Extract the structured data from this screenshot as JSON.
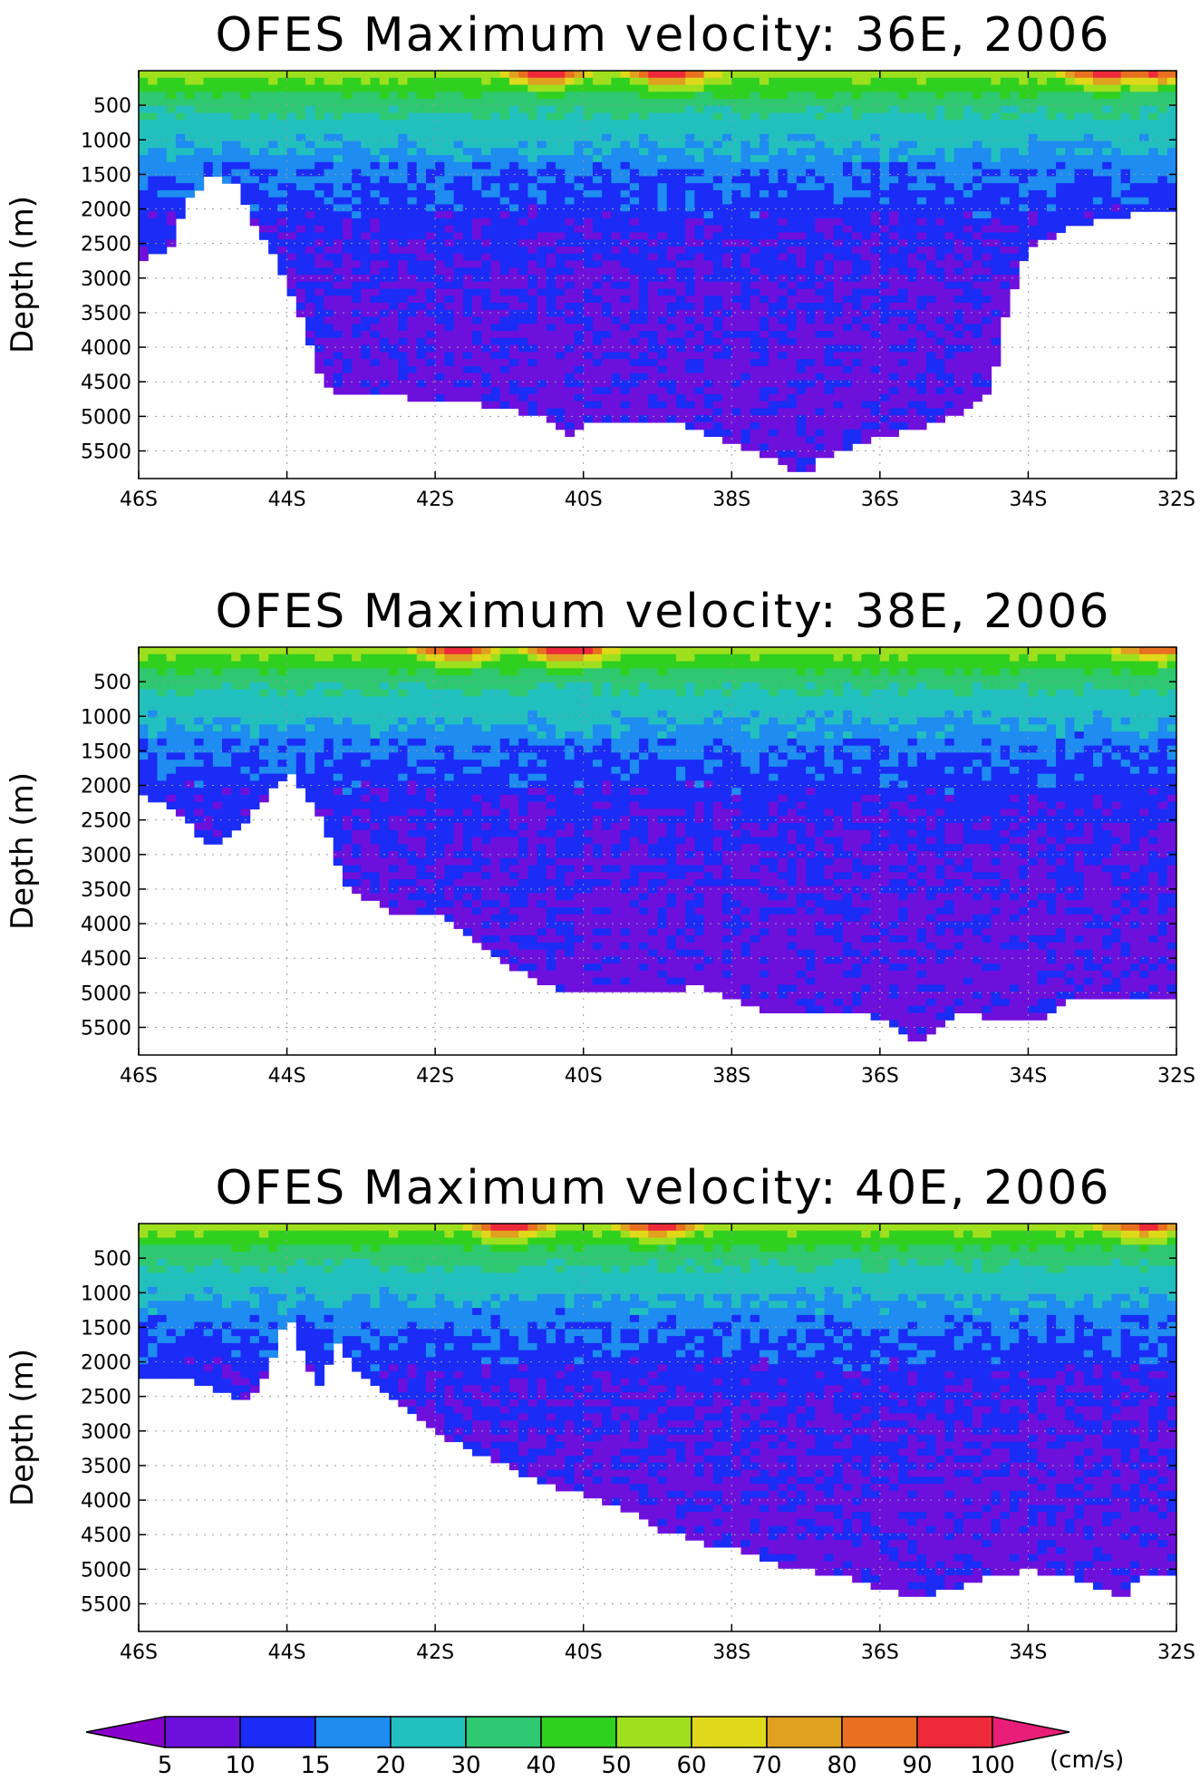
{
  "chart_data": [
    {
      "type": "heatmap",
      "title": "OFES Maximum velocity: 36E, 2006",
      "ylabel": "Depth (m)",
      "xlabel": "",
      "x_ticks": [
        "46S",
        "44S",
        "42S",
        "40S",
        "38S",
        "36S",
        "34S",
        "32S"
      ],
      "y_ticks": [
        "500",
        "1000",
        "1500",
        "2000",
        "2500",
        "3000",
        "3500",
        "4000",
        "4500",
        "5000",
        "5500"
      ],
      "xlim": [
        -46,
        -32
      ],
      "ylim_depth_m": [
        0,
        5900
      ],
      "grid": true,
      "units": "cm/s",
      "bathymetry_bottom_depth_m": {
        "lat": [
          -46,
          -45.6,
          -45.3,
          -45,
          -44.7,
          -44.4,
          -44.1,
          -43.8,
          -43.5,
          -43,
          -42.5,
          -42,
          -41.5,
          -41,
          -40.5,
          -40.1,
          -40,
          -39.5,
          -39,
          -38.5,
          -38,
          -37.5,
          -37.2,
          -37,
          -36.8,
          -36.5,
          -36,
          -35.5,
          -35,
          -34.5,
          -34.3,
          -34,
          -33.5,
          -33,
          -32.5,
          -32
        ],
        "depth": [
          2750,
          2600,
          1800,
          1500,
          1650,
          2300,
          2800,
          3600,
          4600,
          4700,
          4700,
          4800,
          4800,
          4900,
          5050,
          5300,
          5050,
          5050,
          5100,
          5150,
          5400,
          5600,
          5800,
          5850,
          5600,
          5500,
          5300,
          5200,
          5000,
          4600,
          3500,
          2600,
          2300,
          2150,
          2050,
          2050
        ]
      },
      "field_maxima": [
        {
          "lat": -40.5,
          "depth": 40,
          "value": 100
        },
        {
          "lat": -38.8,
          "depth": 80,
          "value": 90
        },
        {
          "lat": -33,
          "depth": 30,
          "value": 100
        },
        {
          "lat": -32.3,
          "depth": 50,
          "value": 90
        }
      ]
    },
    {
      "type": "heatmap",
      "title": "OFES Maximum velocity: 38E, 2006",
      "ylabel": "Depth (m)",
      "xlabel": "",
      "x_ticks": [
        "46S",
        "44S",
        "42S",
        "40S",
        "38S",
        "36S",
        "34S",
        "32S"
      ],
      "y_ticks": [
        "500",
        "1000",
        "1500",
        "2000",
        "2500",
        "3000",
        "3500",
        "4000",
        "4500",
        "5000",
        "5500"
      ],
      "xlim": [
        -46,
        -32
      ],
      "ylim_depth_m": [
        0,
        5900
      ],
      "grid": true,
      "units": "cm/s",
      "bathymetry_bottom_depth_m": {
        "lat": [
          -46,
          -45.5,
          -45,
          -44.6,
          -44,
          -43.6,
          -43.2,
          -42.8,
          -42.4,
          -42,
          -41.5,
          -41,
          -40.5,
          -40,
          -39.5,
          -39,
          -38.5,
          -38,
          -37.5,
          -37,
          -36.5,
          -36,
          -35.5,
          -35,
          -34.5,
          -34,
          -33.6,
          -33.5,
          -33,
          -32.5,
          -32
        ],
        "depth": [
          2100,
          2400,
          2900,
          2600,
          1800,
          2300,
          3500,
          3700,
          3900,
          3850,
          4200,
          4600,
          4900,
          5000,
          5000,
          5000,
          4900,
          5100,
          5300,
          5300,
          5300,
          5350,
          5700,
          5300,
          5350,
          5400,
          5300,
          5100,
          5100,
          5100,
          5100
        ]
      },
      "field_maxima": [
        {
          "lat": -41.7,
          "depth": 40,
          "value": 100
        },
        {
          "lat": -40.2,
          "depth": 50,
          "value": 100
        },
        {
          "lat": -32.3,
          "depth": 30,
          "value": 90
        }
      ]
    },
    {
      "type": "heatmap",
      "title": "OFES Maximum velocity: 40E, 2006",
      "ylabel": "Depth (m)",
      "xlabel": "",
      "x_ticks": [
        "46S",
        "44S",
        "42S",
        "40S",
        "38S",
        "36S",
        "34S",
        "32S"
      ],
      "y_ticks": [
        "500",
        "1000",
        "1500",
        "2000",
        "2500",
        "3000",
        "3500",
        "4000",
        "4500",
        "5000",
        "5500"
      ],
      "xlim": [
        -46,
        -32
      ],
      "ylim_depth_m": [
        0,
        5900
      ],
      "grid": true,
      "units": "cm/s",
      "bathymetry_bottom_depth_m": {
        "lat": [
          -46,
          -45.5,
          -45,
          -44.5,
          -44.2,
          -44,
          -43.6,
          -43.3,
          -43,
          -42.5,
          -42,
          -41.5,
          -41,
          -40.5,
          -40,
          -39.5,
          -39,
          -38.5,
          -38,
          -37.5,
          -37,
          -36.5,
          -36,
          -35.5,
          -35,
          -34.5,
          -34,
          -33.5,
          -33,
          -32.7,
          -32.5,
          -32
        ],
        "depth": [
          2300,
          2200,
          2400,
          2600,
          2000,
          1300,
          2400,
          1700,
          2200,
          2600,
          3000,
          3300,
          3500,
          3800,
          3900,
          4100,
          4400,
          4600,
          4700,
          4900,
          5000,
          5100,
          5300,
          5400,
          5300,
          5100,
          5000,
          5100,
          5300,
          5400,
          5100,
          5100
        ]
      },
      "field_maxima": [
        {
          "lat": -41,
          "depth": 40,
          "value": 100
        },
        {
          "lat": -39,
          "depth": 30,
          "value": 100
        },
        {
          "lat": -32.5,
          "depth": 20,
          "value": 100
        }
      ]
    }
  ],
  "colorbar": {
    "levels": [
      "5",
      "10",
      "15",
      "20",
      "30",
      "40",
      "50",
      "60",
      "70",
      "80",
      "90",
      "100"
    ],
    "colors": [
      "#8800cc",
      "#6e10dc",
      "#1a2cf5",
      "#1e8cf0",
      "#22bfbf",
      "#2ec870",
      "#30d020",
      "#9ee01e",
      "#e0d81a",
      "#e0a020",
      "#e87020",
      "#ee2a3a",
      "#e81e78"
    ],
    "unit_label": "(cm/s)"
  }
}
